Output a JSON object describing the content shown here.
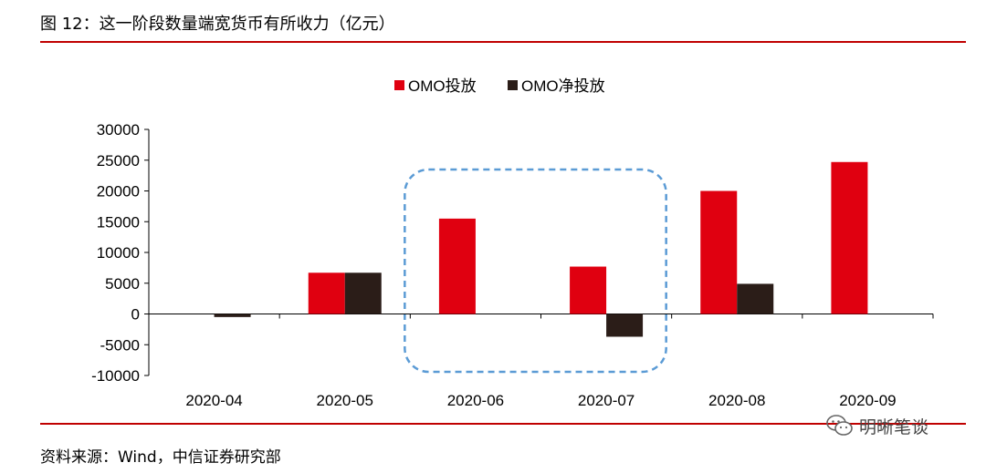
{
  "header": {
    "title": "图 12：这一阶段数量端宽货币有所收力（亿元）"
  },
  "footer": {
    "source": "资料来源：Wind，中信证券研究部",
    "brand": "明晰笔谈",
    "brand_icon": "wechat-icon"
  },
  "highlight": {
    "from": "2020-06",
    "to": "2020-07",
    "color": "#5b9bd5"
  },
  "chart_data": {
    "type": "bar",
    "categories": [
      "2020-04",
      "2020-05",
      "2020-06",
      "2020-07",
      "2020-08",
      "2020-09"
    ],
    "series": [
      {
        "name": "OMO投放",
        "color": "#e00010",
        "values": [
          0,
          6700,
          15500,
          7700,
          20000,
          24700
        ]
      },
      {
        "name": "OMO净投放",
        "color": "#2b1d18",
        "values": [
          -500,
          6700,
          0,
          -3700,
          4900,
          0
        ]
      }
    ],
    "ylim": [
      -10000,
      30000
    ],
    "yticks": [
      -10000,
      -5000,
      0,
      5000,
      10000,
      15000,
      20000,
      25000,
      30000
    ],
    "ytick_labels": [
      "-10000",
      "-5000",
      "0",
      "5000",
      "10000",
      "15000",
      "20000",
      "25000",
      "30000"
    ],
    "legend_position": "top"
  }
}
